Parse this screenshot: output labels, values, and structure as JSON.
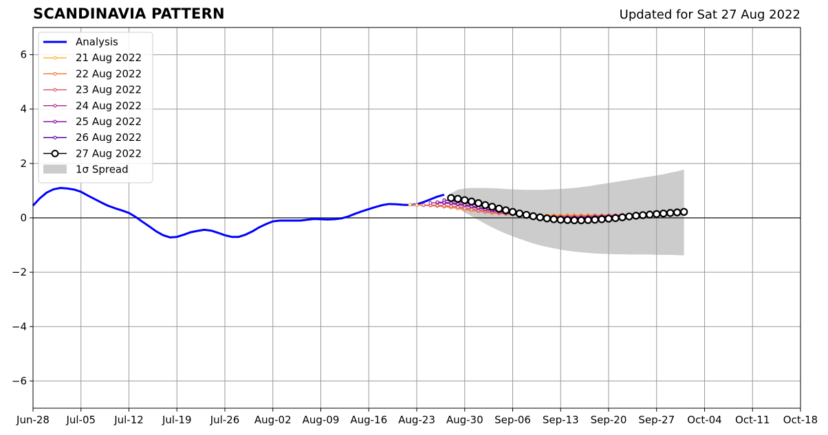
{
  "header": {
    "title": "SCANDINAVIA PATTERN",
    "subtitle": "Updated for Sat 27 Aug 2022"
  },
  "chart_data": {
    "type": "line",
    "title": "SCANDINAVIA PATTERN",
    "subtitle": "Updated for Sat 27 Aug 2022",
    "xlabel": "",
    "ylabel": "",
    "xlim": [
      "2022-06-28",
      "2022-10-18"
    ],
    "ylim": [
      -7,
      7
    ],
    "grid": true,
    "legend_position": "top-left",
    "x_ticks": [
      "Jun-28",
      "Jul-05",
      "Jul-12",
      "Jul-19",
      "Jul-26",
      "Aug-02",
      "Aug-09",
      "Aug-16",
      "Aug-23",
      "Aug-30",
      "Sep-06",
      "Sep-13",
      "Sep-20",
      "Sep-27",
      "Oct-04",
      "Oct-11",
      "Oct-18"
    ],
    "y_ticks": [
      -6,
      -4,
      -2,
      0,
      2,
      4,
      6
    ],
    "y_tick_labels": [
      "−6",
      "−4",
      "−2",
      "0",
      "2",
      "4",
      "6"
    ],
    "legend": [
      "Analysis",
      "21 Aug 2022",
      "22 Aug 2022",
      "23 Aug 2022",
      "24 Aug 2022",
      "25 Aug 2022",
      "26 Aug 2022",
      "27 Aug 2022",
      "1σ Spread"
    ],
    "series": [
      {
        "name": "Analysis",
        "color": "#0000ff",
        "x": [
          "2022-06-28",
          "2022-06-29",
          "2022-06-30",
          "2022-07-01",
          "2022-07-02",
          "2022-07-03",
          "2022-07-04",
          "2022-07-05",
          "2022-07-06",
          "2022-07-07",
          "2022-07-08",
          "2022-07-09",
          "2022-07-10",
          "2022-07-11",
          "2022-07-12",
          "2022-07-13",
          "2022-07-14",
          "2022-07-15",
          "2022-07-16",
          "2022-07-17",
          "2022-07-18",
          "2022-07-19",
          "2022-07-20",
          "2022-07-21",
          "2022-07-22",
          "2022-07-23",
          "2022-07-24",
          "2022-07-25",
          "2022-07-26",
          "2022-07-27",
          "2022-07-28",
          "2022-07-29",
          "2022-07-30",
          "2022-07-31",
          "2022-08-01",
          "2022-08-02",
          "2022-08-03",
          "2022-08-04",
          "2022-08-05",
          "2022-08-06",
          "2022-08-07",
          "2022-08-08",
          "2022-08-09",
          "2022-08-10",
          "2022-08-11",
          "2022-08-12",
          "2022-08-13",
          "2022-08-14",
          "2022-08-15",
          "2022-08-16",
          "2022-08-17",
          "2022-08-18",
          "2022-08-19",
          "2022-08-20",
          "2022-08-21",
          "2022-08-22",
          "2022-08-23",
          "2022-08-24",
          "2022-08-25",
          "2022-08-26",
          "2022-08-27"
        ],
        "y": [
          0.45,
          0.72,
          0.93,
          1.05,
          1.1,
          1.08,
          1.04,
          0.96,
          0.82,
          0.69,
          0.56,
          0.44,
          0.35,
          0.27,
          0.18,
          0.03,
          -0.15,
          -0.32,
          -0.5,
          -0.64,
          -0.72,
          -0.7,
          -0.62,
          -0.53,
          -0.48,
          -0.44,
          -0.47,
          -0.55,
          -0.64,
          -0.7,
          -0.7,
          -0.62,
          -0.5,
          -0.35,
          -0.23,
          -0.13,
          -0.1,
          -0.1,
          -0.1,
          -0.1,
          -0.07,
          -0.04,
          -0.05,
          -0.06,
          -0.05,
          -0.02,
          0.05,
          0.15,
          0.24,
          0.32,
          0.4,
          0.47,
          0.51,
          0.5,
          0.48,
          0.47,
          0.5,
          0.58,
          0.68,
          0.78,
          0.85
        ]
      },
      {
        "name": "21 Aug 2022",
        "color": "#fdb42f",
        "x": [
          "2022-08-22",
          "2022-08-23",
          "2022-08-24",
          "2022-08-25",
          "2022-08-26",
          "2022-08-27",
          "2022-08-28",
          "2022-08-29",
          "2022-08-30",
          "2022-08-31",
          "2022-09-01",
          "2022-09-02",
          "2022-09-03",
          "2022-09-04",
          "2022-09-05",
          "2022-09-06",
          "2022-09-07",
          "2022-09-08",
          "2022-09-09",
          "2022-09-10",
          "2022-09-11",
          "2022-09-12",
          "2022-09-13",
          "2022-09-14",
          "2022-09-15",
          "2022-09-16",
          "2022-09-17",
          "2022-09-18",
          "2022-09-19",
          "2022-09-20"
        ],
        "y": [
          0.48,
          0.48,
          0.47,
          0.46,
          0.45,
          0.43,
          0.4,
          0.37,
          0.33,
          0.29,
          0.26,
          0.23,
          0.2,
          0.18,
          0.16,
          0.14,
          0.13,
          0.12,
          0.11,
          0.1,
          0.1,
          0.1,
          0.1,
          0.1,
          0.1,
          0.1,
          0.1,
          0.1,
          0.1,
          0.1
        ]
      },
      {
        "name": "22 Aug 2022",
        "color": "#ef7e3c",
        "x": [
          "2022-08-23",
          "2022-08-24",
          "2022-08-25",
          "2022-08-26",
          "2022-08-27",
          "2022-08-28",
          "2022-08-29",
          "2022-08-30",
          "2022-08-31",
          "2022-09-01",
          "2022-09-02",
          "2022-09-03",
          "2022-09-04",
          "2022-09-05",
          "2022-09-06",
          "2022-09-07",
          "2022-09-08",
          "2022-09-09",
          "2022-09-10",
          "2022-09-11",
          "2022-09-12",
          "2022-09-13",
          "2022-09-14",
          "2022-09-15",
          "2022-09-16",
          "2022-09-17",
          "2022-09-18",
          "2022-09-19",
          "2022-09-20",
          "2022-09-21"
        ],
        "y": [
          0.47,
          0.46,
          0.45,
          0.43,
          0.41,
          0.38,
          0.35,
          0.31,
          0.27,
          0.24,
          0.21,
          0.18,
          0.16,
          0.14,
          0.12,
          0.11,
          0.1,
          0.09,
          0.08,
          0.08,
          0.08,
          0.08,
          0.08,
          0.08,
          0.08,
          0.08,
          0.09,
          0.09,
          0.1,
          0.1
        ]
      },
      {
        "name": "23 Aug 2022",
        "color": "#db5c68",
        "x": [
          "2022-08-24",
          "2022-08-25",
          "2022-08-26",
          "2022-08-27",
          "2022-08-28",
          "2022-08-29",
          "2022-08-30",
          "2022-08-31",
          "2022-09-01",
          "2022-09-02",
          "2022-09-03",
          "2022-09-04",
          "2022-09-05",
          "2022-09-06",
          "2022-09-07",
          "2022-09-08",
          "2022-09-09",
          "2022-09-10",
          "2022-09-11",
          "2022-09-12",
          "2022-09-13",
          "2022-09-14",
          "2022-09-15",
          "2022-09-16",
          "2022-09-17",
          "2022-09-18",
          "2022-09-19",
          "2022-09-20",
          "2022-09-21",
          "2022-09-22"
        ],
        "y": [
          0.47,
          0.47,
          0.46,
          0.45,
          0.43,
          0.4,
          0.36,
          0.32,
          0.28,
          0.24,
          0.21,
          0.18,
          0.15,
          0.13,
          0.11,
          0.09,
          0.08,
          0.07,
          0.06,
          0.05,
          0.05,
          0.05,
          0.05,
          0.06,
          0.06,
          0.07,
          0.08,
          0.09,
          0.1,
          0.11
        ]
      },
      {
        "name": "24 Aug 2022",
        "color": "#b52f8c",
        "x": [
          "2022-08-25",
          "2022-08-26",
          "2022-08-27",
          "2022-08-28",
          "2022-08-29",
          "2022-08-30",
          "2022-08-31",
          "2022-09-01",
          "2022-09-02",
          "2022-09-03",
          "2022-09-04",
          "2022-09-05",
          "2022-09-06",
          "2022-09-07",
          "2022-09-08",
          "2022-09-09",
          "2022-09-10",
          "2022-09-11",
          "2022-09-12",
          "2022-09-13",
          "2022-09-14",
          "2022-09-15",
          "2022-09-16",
          "2022-09-17",
          "2022-09-18",
          "2022-09-19",
          "2022-09-20",
          "2022-09-21",
          "2022-09-22",
          "2022-09-23"
        ],
        "y": [
          0.55,
          0.55,
          0.54,
          0.52,
          0.49,
          0.45,
          0.4,
          0.35,
          0.3,
          0.26,
          0.22,
          0.18,
          0.15,
          0.12,
          0.1,
          0.08,
          0.06,
          0.05,
          0.04,
          0.03,
          0.03,
          0.03,
          0.03,
          0.04,
          0.05,
          0.06,
          0.07,
          0.08,
          0.1,
          0.11
        ]
      },
      {
        "name": "25 Aug 2022",
        "color": "#8b0aa5",
        "x": [
          "2022-08-26",
          "2022-08-27",
          "2022-08-28",
          "2022-08-29",
          "2022-08-30",
          "2022-08-31",
          "2022-09-01",
          "2022-09-02",
          "2022-09-03",
          "2022-09-04",
          "2022-09-05",
          "2022-09-06",
          "2022-09-07",
          "2022-09-08",
          "2022-09-09",
          "2022-09-10",
          "2022-09-11",
          "2022-09-12",
          "2022-09-13",
          "2022-09-14",
          "2022-09-15",
          "2022-09-16",
          "2022-09-17",
          "2022-09-18",
          "2022-09-19",
          "2022-09-20",
          "2022-09-21",
          "2022-09-22",
          "2022-09-23",
          "2022-09-24"
        ],
        "y": [
          0.58,
          0.57,
          0.55,
          0.52,
          0.48,
          0.43,
          0.38,
          0.33,
          0.28,
          0.24,
          0.2,
          0.16,
          0.13,
          0.1,
          0.08,
          0.06,
          0.04,
          0.03,
          0.02,
          0.01,
          0.01,
          0.01,
          0.02,
          0.03,
          0.04,
          0.05,
          0.07,
          0.08,
          0.1,
          0.12
        ]
      },
      {
        "name": "26 Aug 2022",
        "color": "#5b02a3",
        "x": [
          "2022-08-27",
          "2022-08-28",
          "2022-08-29",
          "2022-08-30",
          "2022-08-31",
          "2022-09-01",
          "2022-09-02",
          "2022-09-03",
          "2022-09-04",
          "2022-09-05",
          "2022-09-06",
          "2022-09-07",
          "2022-09-08",
          "2022-09-09",
          "2022-09-10",
          "2022-09-11",
          "2022-09-12",
          "2022-09-13",
          "2022-09-14",
          "2022-09-15",
          "2022-09-16",
          "2022-09-17",
          "2022-09-18",
          "2022-09-19",
          "2022-09-20",
          "2022-09-21",
          "2022-09-22",
          "2022-09-23",
          "2022-09-24",
          "2022-09-25"
        ],
        "y": [
          0.65,
          0.63,
          0.6,
          0.56,
          0.51,
          0.46,
          0.4,
          0.34,
          0.29,
          0.24,
          0.19,
          0.15,
          0.11,
          0.08,
          0.05,
          0.03,
          0.01,
          0.0,
          -0.01,
          -0.01,
          -0.01,
          0.0,
          0.01,
          0.02,
          0.04,
          0.06,
          0.08,
          0.1,
          0.12,
          0.14
        ]
      },
      {
        "name": "27 Aug 2022",
        "color": "#000000",
        "x": [
          "2022-08-28",
          "2022-08-29",
          "2022-08-30",
          "2022-08-31",
          "2022-09-01",
          "2022-09-02",
          "2022-09-03",
          "2022-09-04",
          "2022-09-05",
          "2022-09-06",
          "2022-09-07",
          "2022-09-08",
          "2022-09-09",
          "2022-09-10",
          "2022-09-11",
          "2022-09-12",
          "2022-09-13",
          "2022-09-14",
          "2022-09-15",
          "2022-09-16",
          "2022-09-17",
          "2022-09-18",
          "2022-09-19",
          "2022-09-20",
          "2022-09-21",
          "2022-09-22",
          "2022-09-23",
          "2022-09-24",
          "2022-09-25",
          "2022-09-26",
          "2022-09-27",
          "2022-09-28",
          "2022-09-29",
          "2022-09-30",
          "2022-10-01"
        ],
        "y": [
          0.73,
          0.7,
          0.65,
          0.6,
          0.54,
          0.47,
          0.41,
          0.34,
          0.28,
          0.22,
          0.16,
          0.11,
          0.06,
          0.02,
          -0.02,
          -0.05,
          -0.07,
          -0.08,
          -0.09,
          -0.09,
          -0.08,
          -0.07,
          -0.05,
          -0.03,
          -0.01,
          0.02,
          0.05,
          0.08,
          0.1,
          0.12,
          0.14,
          0.16,
          0.18,
          0.2,
          0.22
        ]
      }
    ],
    "spread": {
      "name": "1σ Spread",
      "color": "#cccccc",
      "x": [
        "2022-08-28",
        "2022-08-29",
        "2022-08-30",
        "2022-08-31",
        "2022-09-01",
        "2022-09-02",
        "2022-09-03",
        "2022-09-04",
        "2022-09-05",
        "2022-09-06",
        "2022-09-07",
        "2022-09-08",
        "2022-09-09",
        "2022-09-10",
        "2022-09-11",
        "2022-09-12",
        "2022-09-13",
        "2022-09-14",
        "2022-09-15",
        "2022-09-16",
        "2022-09-17",
        "2022-09-18",
        "2022-09-19",
        "2022-09-20",
        "2022-09-21",
        "2022-09-22",
        "2022-09-23",
        "2022-09-24",
        "2022-09-25",
        "2022-09-26",
        "2022-09-27",
        "2022-09-28",
        "2022-09-29",
        "2022-09-30",
        "2022-10-01"
      ],
      "upper": [
        0.9,
        1.04,
        1.08,
        1.1,
        1.1,
        1.1,
        1.09,
        1.08,
        1.06,
        1.05,
        1.04,
        1.03,
        1.03,
        1.03,
        1.04,
        1.05,
        1.06,
        1.08,
        1.1,
        1.13,
        1.16,
        1.2,
        1.24,
        1.28,
        1.32,
        1.36,
        1.4,
        1.44,
        1.48,
        1.52,
        1.56,
        1.6,
        1.66,
        1.71,
        1.78
      ],
      "lower": [
        0.55,
        0.36,
        0.2,
        0.06,
        -0.08,
        -0.22,
        -0.35,
        -0.47,
        -0.58,
        -0.68,
        -0.77,
        -0.86,
        -0.94,
        -1.01,
        -1.07,
        -1.12,
        -1.17,
        -1.21,
        -1.24,
        -1.27,
        -1.29,
        -1.31,
        -1.32,
        -1.33,
        -1.34,
        -1.34,
        -1.35,
        -1.35,
        -1.35,
        -1.35,
        -1.36,
        -1.36,
        -1.36,
        -1.37,
        -1.38
      ]
    }
  }
}
